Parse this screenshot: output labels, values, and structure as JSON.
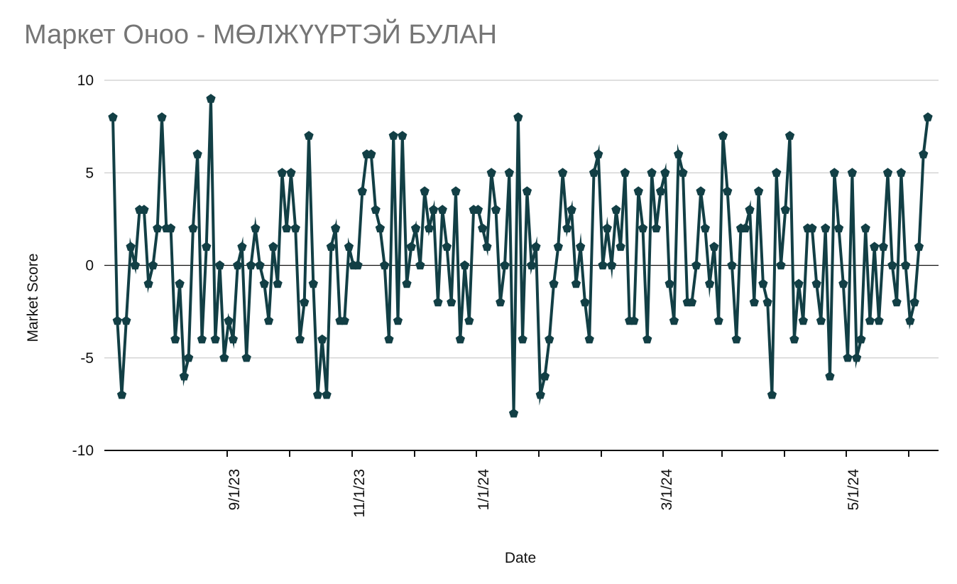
{
  "chart_data": {
    "type": "line",
    "title": "Маркет Оноо - МӨЛЖҮҮРТЭЙ БУЛАН",
    "xlabel": "Date",
    "ylabel": "Market Score",
    "ylim": [
      -10,
      10
    ],
    "y_ticks": [
      10,
      5,
      0,
      -5,
      -10
    ],
    "x_ticks": [
      "9/1/23",
      "11/1/23",
      "1/1/24",
      "3/1/24",
      "5/1/24"
    ],
    "grid": true,
    "legend": "none",
    "line_color": "#123f45",
    "marker": "pentagon",
    "series": [
      {
        "values": [
          8,
          -3,
          -7,
          -3,
          1,
          0,
          3,
          3,
          -1,
          0,
          2,
          8,
          2,
          2,
          -4,
          -1,
          -6,
          -5,
          2,
          6,
          -4,
          1,
          9,
          -4,
          0,
          -5,
          -3,
          -4,
          0,
          1,
          -5,
          0,
          2,
          0,
          -1,
          -3,
          1,
          -1,
          5,
          2,
          5,
          2,
          -4,
          -2,
          7,
          -1,
          -7,
          -4,
          -7,
          1,
          2,
          -3,
          -3,
          1,
          0,
          0,
          4,
          6,
          6,
          3,
          2,
          0,
          -4,
          7,
          -3,
          7,
          -1,
          1,
          2,
          0,
          4,
          2,
          3,
          -2,
          3,
          1,
          -2,
          4,
          -4,
          0,
          -3,
          3,
          3,
          2,
          1,
          5,
          3,
          -2,
          0,
          5,
          -8,
          8,
          -4,
          4,
          0,
          1,
          -7,
          -6,
          -4,
          -1,
          1,
          5,
          2,
          3,
          -1,
          1,
          -2,
          -4,
          5,
          6,
          0,
          2,
          0,
          3,
          1,
          5,
          -3,
          -3,
          4,
          2,
          -4,
          5,
          2,
          4,
          5,
          -1,
          -3,
          6,
          5,
          -2,
          -2,
          0,
          4,
          2,
          -1,
          1,
          -3,
          7,
          4,
          0,
          -4,
          2,
          2,
          3,
          -2,
          4,
          -1,
          -2,
          -7,
          5,
          0,
          3,
          7,
          -4,
          -1,
          -3,
          2,
          2,
          -1,
          -3,
          2,
          -6,
          5,
          2,
          -1,
          -5,
          5,
          -5,
          -4,
          2,
          -3,
          1,
          -3,
          1,
          5,
          0,
          -2,
          5,
          0,
          -3,
          -2,
          1,
          6,
          8
        ]
      }
    ]
  }
}
